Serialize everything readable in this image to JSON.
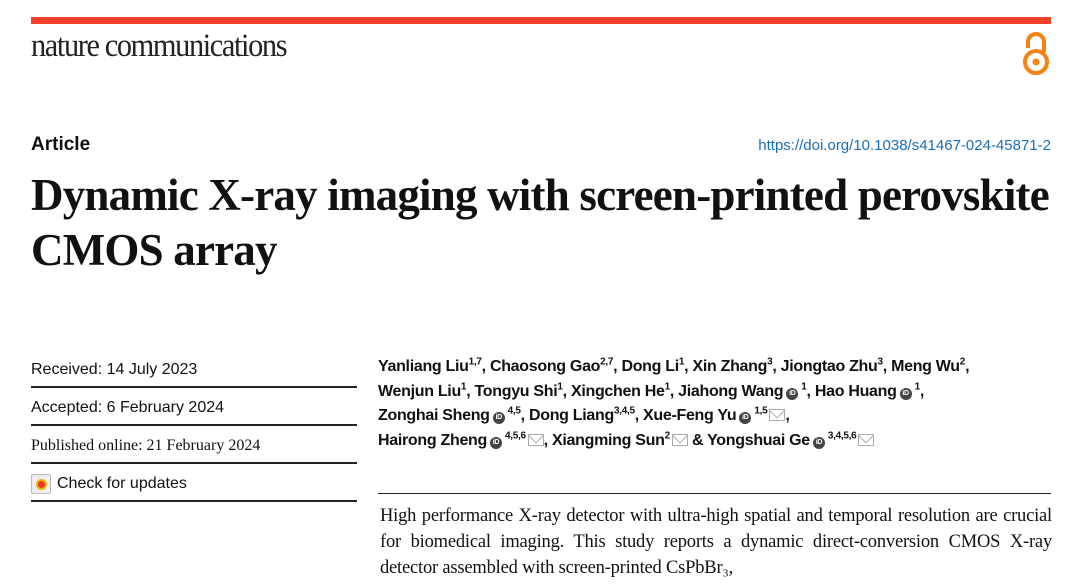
{
  "header": {
    "journal": "nature communications",
    "open_access_icon": "open-access-icon",
    "accent": "#f2412a"
  },
  "article": {
    "type": "Article",
    "doi": "https://doi.org/10.1038/s41467-024-45871-2",
    "title": "Dynamic X-ray imaging with screen-printed perovskite CMOS array"
  },
  "meta": {
    "received": "Received: 14 July 2023",
    "accepted": "Accepted: 6 February 2024",
    "published": "Published online: 21 February 2024",
    "check_updates": "Check for updates"
  },
  "authors": [
    {
      "name": "Yanliang Liu",
      "sup": "1,7",
      "sep": ", "
    },
    {
      "name": "Chaosong Gao",
      "sup": "2,7",
      "sep": ", "
    },
    {
      "name": "Dong Li",
      "sup": "1",
      "sep": ", "
    },
    {
      "name": "Xin Zhang",
      "sup": "3",
      "sep": ", "
    },
    {
      "name": "Jiongtao Zhu",
      "sup": "3",
      "sep": ", "
    },
    {
      "name": "Meng Wu",
      "sup": "2",
      "sep": ", "
    },
    {
      "name": "Wenjun Liu",
      "sup": "1",
      "sep": ", "
    },
    {
      "name": "Tongyu Shi",
      "sup": "1",
      "sep": ", "
    },
    {
      "name": "Xingchen He",
      "sup": "1",
      "sep": ", "
    },
    {
      "name": "Jiahong Wang",
      "sup": "1",
      "orcid": true,
      "sep": ", "
    },
    {
      "name": "Hao Huang",
      "sup": "1",
      "orcid": true,
      "sep": ", "
    },
    {
      "name": "Zonghai Sheng",
      "sup": "4,5",
      "orcid": true,
      "sep": ", "
    },
    {
      "name": "Dong Liang",
      "sup": "3,4,5",
      "sep": ", "
    },
    {
      "name": "Xue-Feng Yu",
      "sup": "1,5",
      "orcid": true,
      "email": true,
      "sep": ", "
    },
    {
      "name": "Hairong Zheng",
      "sup": "4,5,6",
      "orcid": true,
      "email": true,
      "sep": ", "
    },
    {
      "name": "Xiangming Sun",
      "sup": "2",
      "email": true,
      "sep": " & "
    },
    {
      "name": "Yongshuai Ge",
      "sup": "3,4,5,6",
      "orcid": true,
      "email": true,
      "sep": ""
    }
  ],
  "abstract": "High performance X-ray detector with ultra-high spatial and temporal resolution are crucial for biomedical imaging. This study reports a dynamic direct-conversion CMOS X-ray detector assembled with screen-printed CsPbBr₃,"
}
